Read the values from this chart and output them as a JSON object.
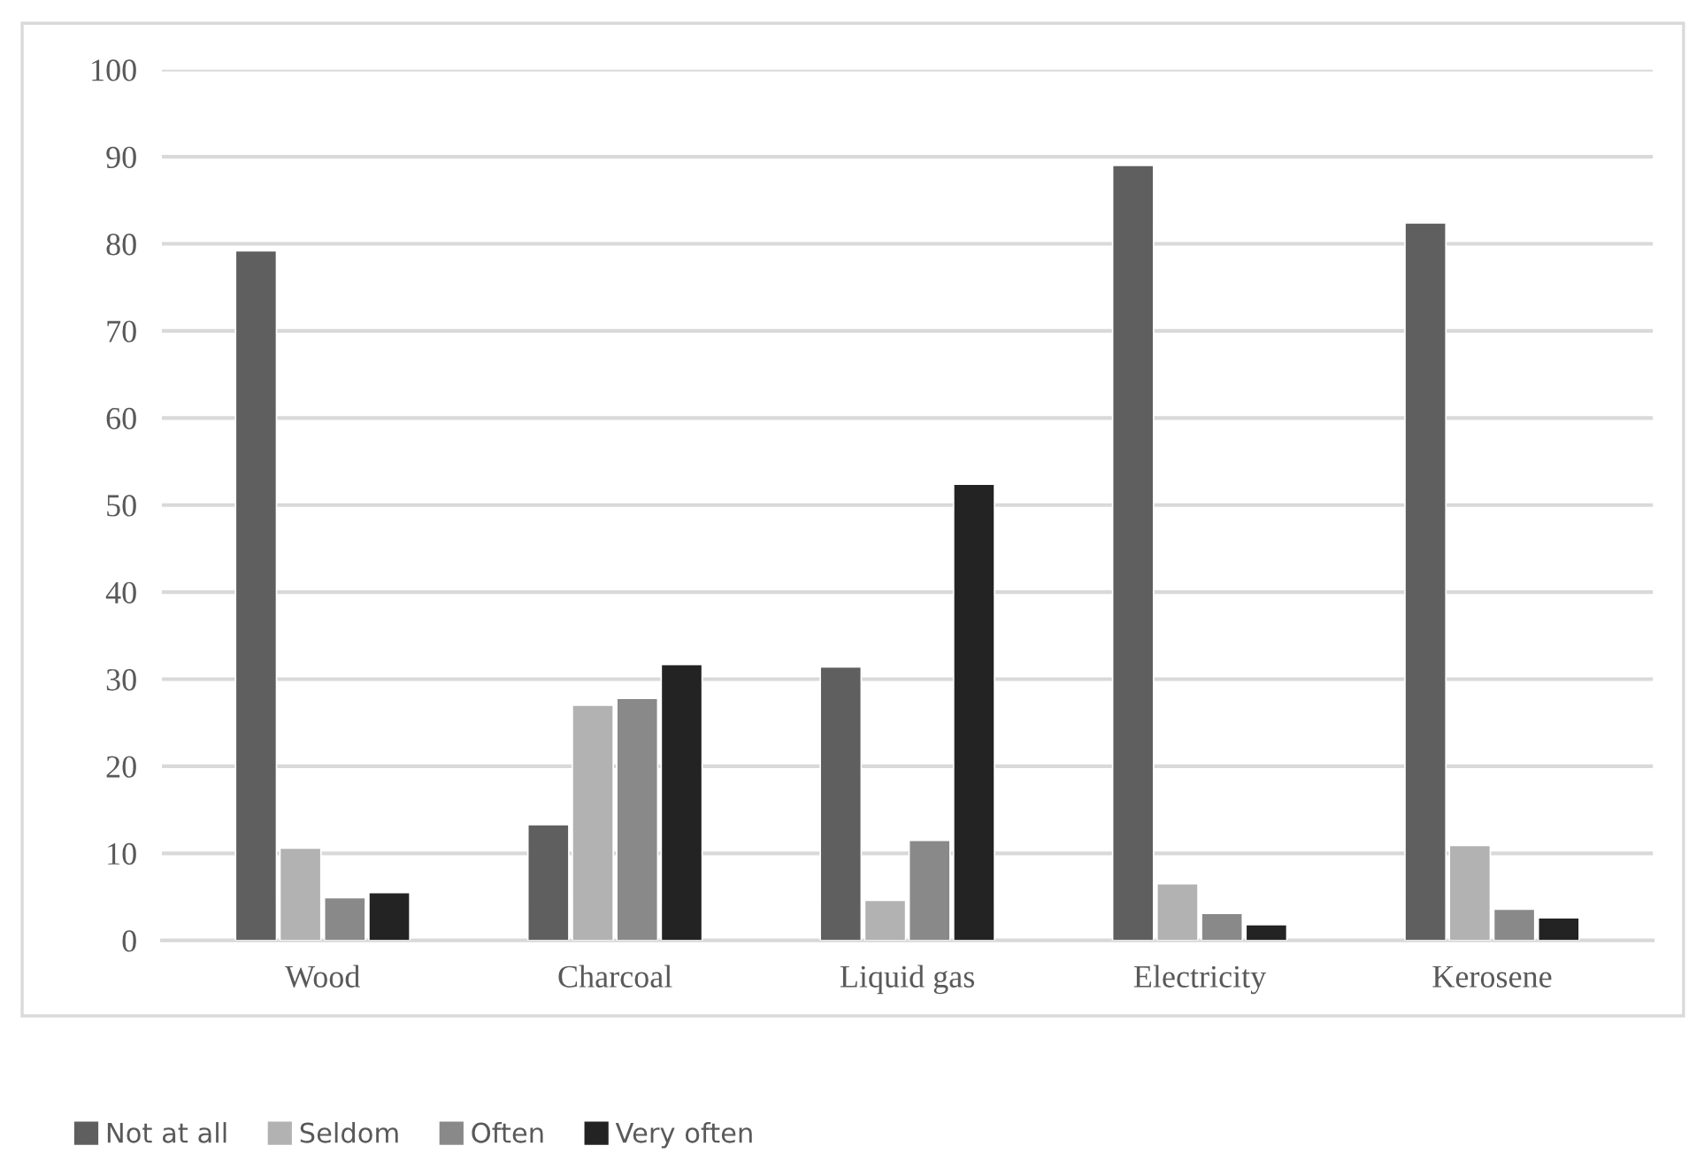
{
  "chart_data": {
    "type": "bar",
    "categories": [
      "Wood",
      "Charcoal",
      "Liquid gas",
      "Electricity",
      "Kerosene"
    ],
    "series": [
      {
        "name": "Not at all",
        "color": "#5f5f5f",
        "values": [
          79.2,
          13.3,
          31.4,
          89.0,
          82.4
        ]
      },
      {
        "name": "Seldom",
        "color": "#b2b2b2",
        "values": [
          10.6,
          27.0,
          4.6,
          6.5,
          10.9
        ]
      },
      {
        "name": "Often",
        "color": "#898989",
        "values": [
          4.9,
          27.8,
          11.5,
          3.1,
          3.6
        ]
      },
      {
        "name": "Very often",
        "color": "#232323",
        "values": [
          5.5,
          31.7,
          52.4,
          1.8,
          2.6
        ]
      }
    ],
    "ylim": [
      0,
      100
    ],
    "yticks": [
      0,
      10,
      20,
      30,
      40,
      50,
      60,
      70,
      80,
      90,
      100
    ],
    "grid": "y",
    "legend": "bottom"
  }
}
